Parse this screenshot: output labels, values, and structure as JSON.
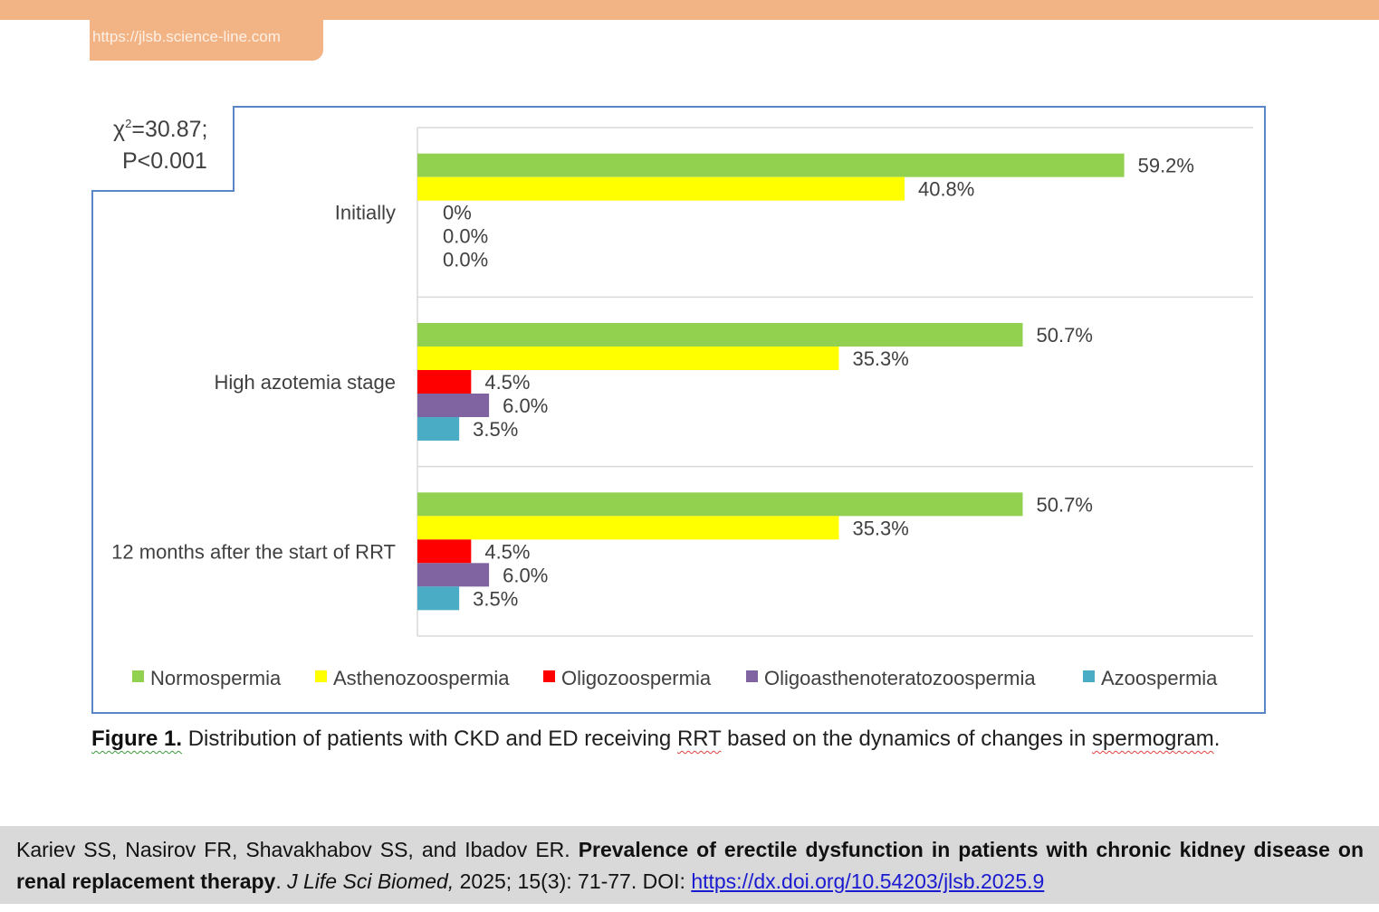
{
  "header": {
    "url_tab": "https://jlsb.science-line.com",
    "band_color": "#f2b385"
  },
  "stats": {
    "chi_label": "χ",
    "chi_sup": "2",
    "chi_value": "=30.87;",
    "p_value": "P<0.001"
  },
  "chart_data": {
    "type": "bar",
    "orientation": "horizontal",
    "title": "",
    "xlabel": "",
    "ylabel": "",
    "xlim": [
      0,
      70
    ],
    "grid": true,
    "legend_position": "bottom",
    "categories": [
      "Initially",
      "High azotemia stage",
      "12 months after the start of RRT"
    ],
    "series": [
      {
        "name": "Normospermia",
        "color": "#92d050",
        "values": [
          59.2,
          50.7,
          50.7
        ],
        "labels": [
          "59.2%",
          "50.7%",
          "50.7%"
        ]
      },
      {
        "name": "Asthenozoospermia",
        "color": "#ffff00",
        "values": [
          40.8,
          35.3,
          35.3
        ],
        "labels": [
          "40.8%",
          "35.3%",
          "35.3%"
        ]
      },
      {
        "name": "Oligozoospermia",
        "color": "#ff0000",
        "values": [
          0,
          4.5,
          4.5
        ],
        "labels": [
          "0%",
          "4.5%",
          "4.5%"
        ]
      },
      {
        "name": "Oligoasthenoteratozoospermia",
        "color": "#8064a2",
        "values": [
          0,
          6.0,
          6.0
        ],
        "labels": [
          "0.0%",
          "6.0%",
          "6.0%"
        ]
      },
      {
        "name": "Azoospermia",
        "color": "#4bacc6",
        "values": [
          0,
          3.5,
          3.5
        ],
        "labels": [
          "0.0%",
          "3.5%",
          "3.5%"
        ]
      }
    ]
  },
  "caption": {
    "label": "Figure 1.",
    "text_before": " Distribution of patients with CKD and ED receiving ",
    "rrt": "RRT",
    "text_middle": " based on the dynamics of changes in ",
    "spermogram": "spermogram",
    "text_end": "."
  },
  "citation": {
    "authors": "Kariev SS, Nasirov FR, Shavakhabov SS, and Ibadov ER. ",
    "title": "Prevalence of erectile dysfunction in patients with chronic kidney disease on renal replacement therapy",
    "sep": ". ",
    "journal": "J Life Sci Biomed,",
    "details": " 2025; 15(3): 71-77. DOI: ",
    "doi_link": "https://dx.doi.org/10.54203/jlsb.2025.9"
  }
}
